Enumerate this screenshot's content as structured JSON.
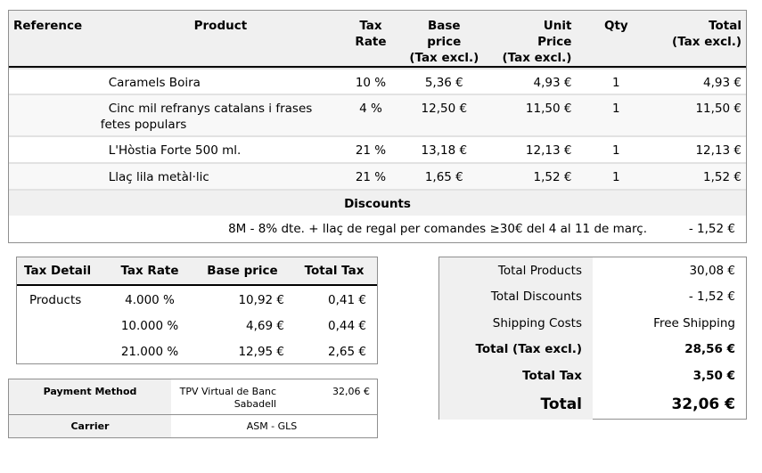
{
  "columns": {
    "reference": "Reference",
    "product": "Product",
    "tax_rate": [
      "Tax",
      "Rate"
    ],
    "base_price": [
      "Base",
      "price",
      "(Tax excl.)"
    ],
    "unit_price": [
      "Unit",
      "Price",
      "(Tax excl.)"
    ],
    "qty": "Qty",
    "total": [
      "Total",
      "(Tax excl.)"
    ]
  },
  "products": [
    {
      "reference": "",
      "name": "Caramels Boira",
      "tax": "10 %",
      "base": "5,36 €",
      "unit": "4,93 €",
      "qty": "1",
      "total": "4,93 €"
    },
    {
      "reference": "",
      "name": "Cinc mil refranys catalans i frases fetes populars",
      "tax": "4 %",
      "base": "12,50 €",
      "unit": "11,50 €",
      "qty": "1",
      "total": "11,50 €"
    },
    {
      "reference": "",
      "name": "L'Hòstia Forte 500 ml.",
      "tax": "21 %",
      "base": "13,18 €",
      "unit": "12,13 €",
      "qty": "1",
      "total": "12,13 €"
    },
    {
      "reference": "",
      "name": "Llaç lila metàl·lic",
      "tax": "21 %",
      "base": "1,65 €",
      "unit": "1,52 €",
      "qty": "1",
      "total": "1,52 €"
    }
  ],
  "discounts": {
    "title": "Discounts",
    "items": [
      {
        "name": "8M - 8% dte. + llaç de regal per comandes ≥30€ del 4 al 11 de març.",
        "value": "- 1,52 €"
      }
    ]
  },
  "tax_detail": {
    "headers": [
      "Tax Detail",
      "Tax Rate",
      "Base price",
      "Total Tax"
    ],
    "rows": [
      {
        "label": "Products",
        "rate": "4.000 %",
        "base": "10,92 €",
        "tax": "0,41 €"
      },
      {
        "label": "",
        "rate": "10.000 %",
        "base": "4,69 €",
        "tax": "0,44 €"
      },
      {
        "label": "",
        "rate": "21.000 %",
        "base": "12,95 €",
        "tax": "2,65 €"
      }
    ]
  },
  "payment": {
    "label": "Payment Method",
    "name_line1": "TPV Virtual de Banc",
    "name_line2": "Sabadell",
    "amount": "32,06 €"
  },
  "carrier": {
    "label": "Carrier",
    "value": "ASM - GLS"
  },
  "totals": [
    {
      "label": "Total Products",
      "value": "30,08 €"
    },
    {
      "label": "Total Discounts",
      "value": "- 1,52 €"
    },
    {
      "label": "Shipping Costs",
      "value": "Free Shipping"
    },
    {
      "label": "Total (Tax excl.)",
      "value": "28,56 €"
    },
    {
      "label": "Total Tax",
      "value": "3,50 €"
    },
    {
      "label": "Total",
      "value": "32,06 €"
    }
  ]
}
